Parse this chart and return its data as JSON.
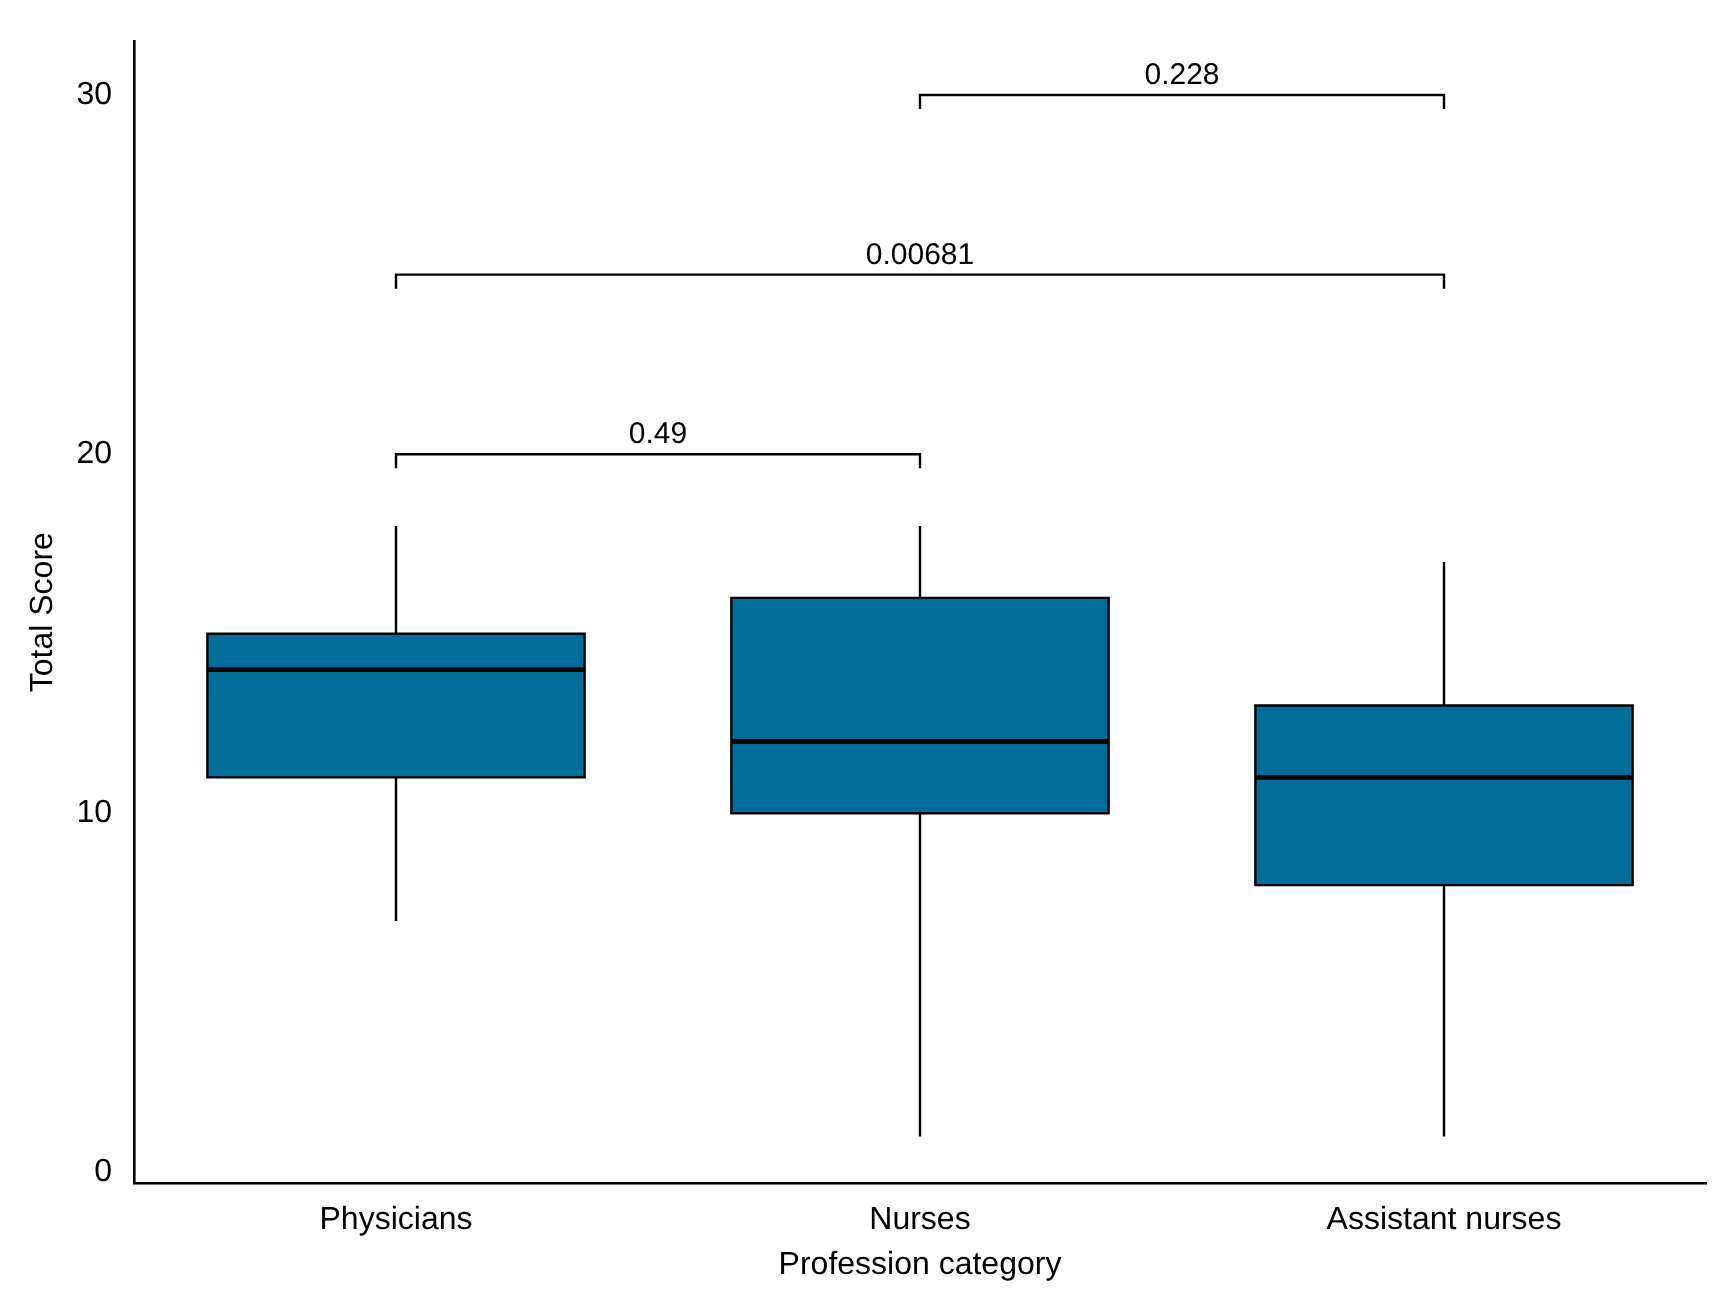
{
  "chart_data": {
    "type": "box",
    "xlabel": "Profession category",
    "ylabel": "Total Score",
    "categories": [
      "Physicians",
      "Nurses",
      "Assistant nurses"
    ],
    "color": "#006d9a",
    "boxes": [
      {
        "low": 7,
        "q1": 11,
        "median": 14,
        "q3": 15,
        "high": 18
      },
      {
        "low": 1,
        "q1": 10,
        "median": 12,
        "q3": 16,
        "high": 18
      },
      {
        "low": 1,
        "q1": 8,
        "median": 11,
        "q3": 13,
        "high": 17
      }
    ],
    "ylim": [
      -0.3,
      31.5
    ],
    "yticks": [
      0,
      10,
      20,
      30
    ],
    "grid": false,
    "legend": false,
    "annotations": [
      "0.49",
      "0.00681",
      "0.228"
    ]
  }
}
